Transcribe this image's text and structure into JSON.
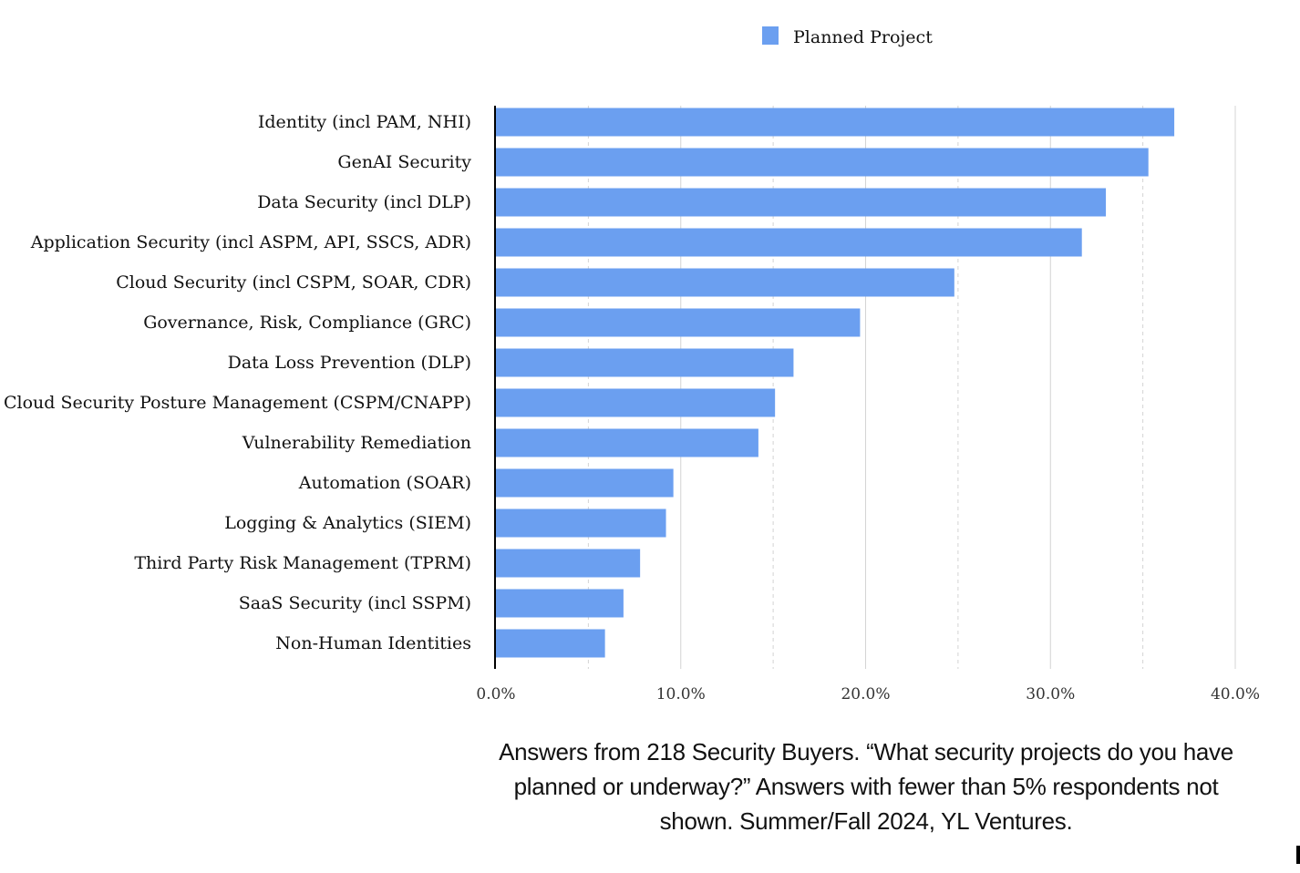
{
  "chart_data": {
    "type": "bar",
    "orientation": "horizontal",
    "categories": [
      "Identity (incl PAM, NHI)",
      "GenAI Security",
      "Data Security (incl DLP)",
      "Application Security (incl ASPM, API, SSCS, ADR)",
      "Cloud Security (incl CSPM, SOAR, CDR)",
      "Governance, Risk, Compliance (GRC)",
      "Data Loss Prevention (DLP)",
      "Cloud Security Posture Management (CSPM/CNAPP)",
      "Vulnerability Remediation",
      "Automation (SOAR)",
      "Logging & Analytics (SIEM)",
      "Third Party Risk Management (TPRM)",
      "SaaS Security (incl  SSPM)",
      "Non-Human Identities"
    ],
    "series": [
      {
        "name": "Planned Project",
        "color": "#6b9ff0",
        "values": [
          36.7,
          35.3,
          33.0,
          31.7,
          24.8,
          19.7,
          16.1,
          15.1,
          14.2,
          9.6,
          9.2,
          7.8,
          6.9,
          5.9
        ]
      }
    ],
    "xlim": [
      0,
      40
    ],
    "xticks": [
      0,
      10,
      20,
      30,
      40
    ],
    "xtick_labels": [
      "0.0%",
      "10.0%",
      "20.0%",
      "30.0%",
      "40.0%"
    ],
    "grid": true,
    "legend_position": "top-center",
    "caption": "Answers from 218 Security Buyers. “What security projects do you have planned or underway?” Answers with fewer than 5% respondents not shown. Summer/Fall 2024, YL Ventures."
  }
}
